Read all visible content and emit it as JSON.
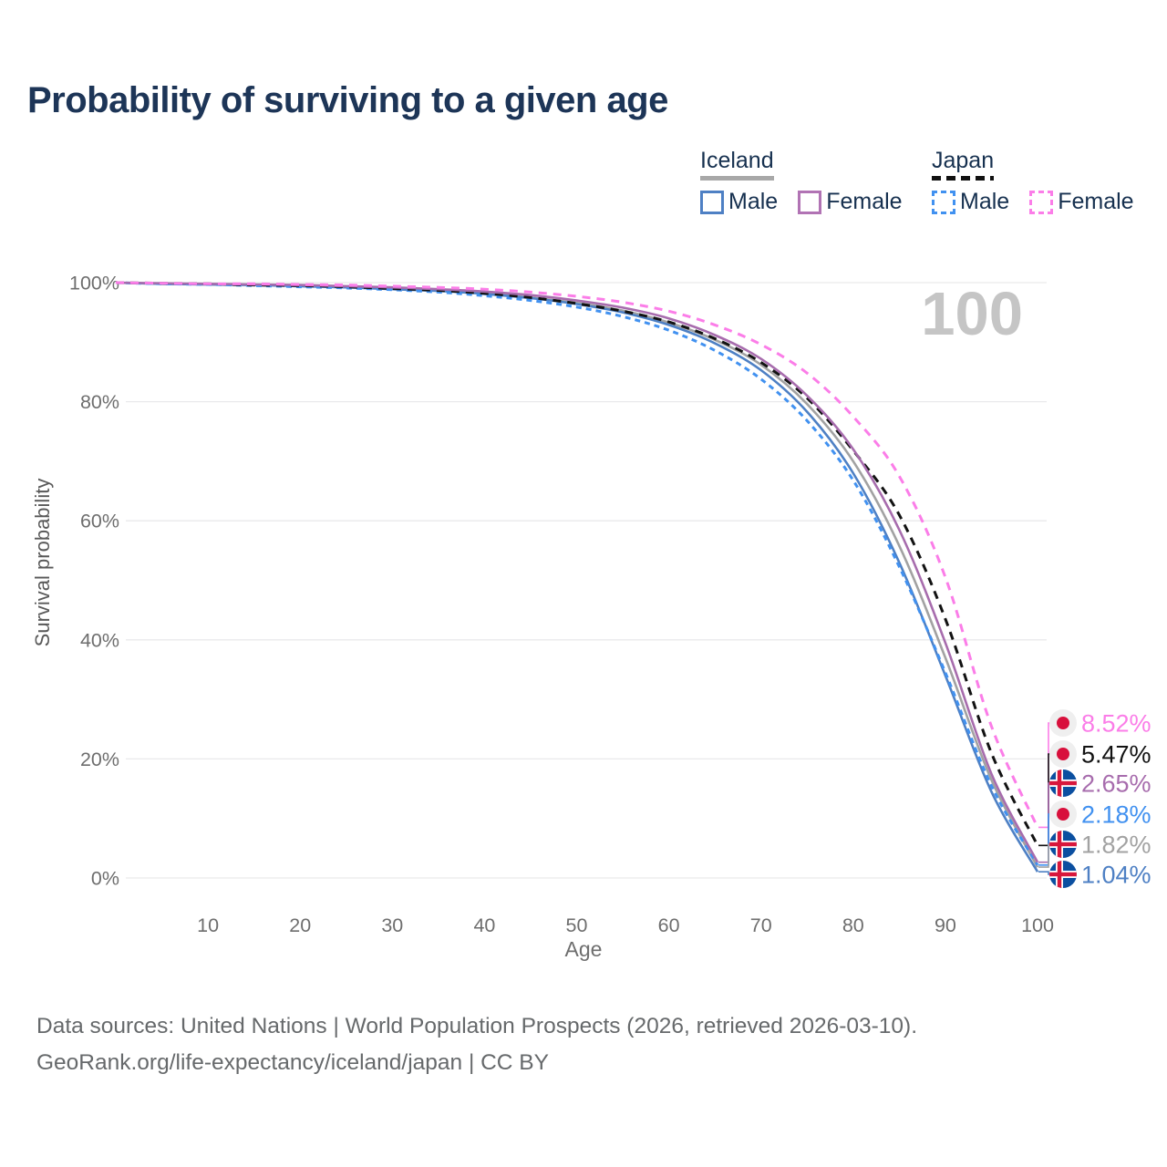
{
  "title": "Probability of surviving to a given age",
  "age_counter": "100",
  "legend": {
    "groups": [
      {
        "country": "Iceland",
        "underline_style": "solid",
        "underline_color": "#a8a8a8",
        "items": [
          {
            "label": "Male",
            "color": "#4e80c4",
            "line_style": "solid"
          },
          {
            "label": "Female",
            "color": "#b173b4",
            "line_style": "solid"
          }
        ]
      },
      {
        "country": "Japan",
        "underline_style": "dashed",
        "underline_color": "#111111",
        "items": [
          {
            "label": "Male",
            "color": "#4191f0",
            "line_style": "dashed"
          },
          {
            "label": "Female",
            "color": "#fb7de8",
            "line_style": "dashed"
          }
        ]
      }
    ]
  },
  "chart_data": {
    "type": "line",
    "title": "Probability of surviving to a given age",
    "xlabel": "Age",
    "ylabel": "Survival probability",
    "xlim": [
      0,
      100
    ],
    "ylim": [
      0,
      100
    ],
    "x_ticks": [
      10,
      20,
      30,
      40,
      50,
      60,
      70,
      80,
      90,
      100
    ],
    "y_ticks": [
      0,
      20,
      40,
      60,
      80,
      100
    ],
    "y_tick_suffix": "%",
    "grid": "horizontal",
    "legend_position": "top-right",
    "x": [
      0,
      5,
      10,
      15,
      20,
      25,
      30,
      35,
      40,
      45,
      50,
      55,
      60,
      65,
      70,
      75,
      80,
      85,
      90,
      95,
      100
    ],
    "series": [
      {
        "name": "Iceland",
        "country": "Iceland",
        "color": "#a2a2a2",
        "line_style": "solid",
        "end_label": "1.82%",
        "values": [
          100,
          99.8,
          99.7,
          99.6,
          99.5,
          99.3,
          99.0,
          98.7,
          98.2,
          97.5,
          96.6,
          95.3,
          93.3,
          90.4,
          86.2,
          79.6,
          70.0,
          55.8,
          37.0,
          16.5,
          1.82
        ]
      },
      {
        "name": "Iceland Male",
        "country": "Iceland",
        "color": "#4e80c4",
        "line_style": "solid",
        "end_label": "1.04%",
        "values": [
          100,
          99.8,
          99.7,
          99.6,
          99.4,
          99.2,
          98.9,
          98.6,
          98.1,
          97.4,
          96.4,
          95.0,
          92.9,
          89.8,
          85.3,
          78.3,
          68.0,
          53.0,
          34.0,
          14.5,
          1.04
        ]
      },
      {
        "name": "Japan Male",
        "country": "Japan",
        "color": "#4191f0",
        "line_style": "dashed",
        "end_label": "2.18%",
        "values": [
          100,
          99.8,
          99.7,
          99.5,
          99.3,
          99.1,
          98.8,
          98.4,
          97.8,
          97.0,
          95.9,
          94.3,
          92.0,
          88.6,
          83.8,
          76.8,
          66.8,
          52.3,
          34.5,
          15.5,
          2.18
        ]
      },
      {
        "name": "Japan",
        "country": "Japan",
        "color": "#121212",
        "line_style": "dashed",
        "end_label": "5.47%",
        "values": [
          100,
          99.9,
          99.8,
          99.6,
          99.5,
          99.3,
          99.0,
          98.7,
          98.2,
          97.5,
          96.5,
          95.2,
          93.4,
          90.6,
          86.6,
          80.6,
          71.8,
          61.0,
          43.5,
          21.0,
          5.47
        ]
      },
      {
        "name": "Iceland Female",
        "country": "Iceland",
        "color": "#a76cad",
        "line_style": "solid",
        "end_label": "2.65%",
        "values": [
          100,
          99.9,
          99.8,
          99.7,
          99.6,
          99.4,
          99.2,
          98.9,
          98.5,
          97.9,
          97.0,
          95.8,
          94.0,
          91.2,
          87.2,
          81.0,
          72.0,
          58.5,
          39.5,
          17.5,
          2.65
        ]
      },
      {
        "name": "Japan Female",
        "country": "Japan",
        "color": "#fb7de8",
        "line_style": "dashed",
        "end_label": "8.52%",
        "values": [
          100,
          99.9,
          99.8,
          99.8,
          99.7,
          99.6,
          99.4,
          99.2,
          98.9,
          98.4,
          97.7,
          96.7,
          95.2,
          92.9,
          89.6,
          84.8,
          77.5,
          67.5,
          50.5,
          25.5,
          8.52
        ]
      }
    ],
    "flag_colors": {
      "iceland_blue": "#0b4fa0",
      "iceland_red": "#d8173c",
      "iceland_white": "#ffffff",
      "japan_bg": "#efefef",
      "japan_red": "#d8103c"
    }
  },
  "footer": {
    "line1": "Data sources: United Nations | World Population Prospects (2026, retrieved 2026-03-10).",
    "line2": "GeoRank.org/life-expectancy/iceland/japan | CC BY"
  }
}
